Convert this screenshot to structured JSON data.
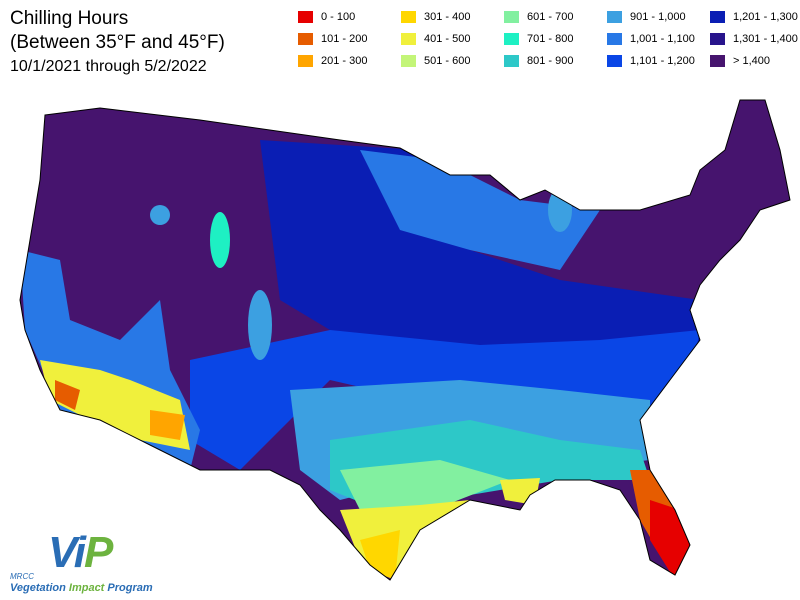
{
  "title": "Chilling Hours",
  "subtitle": "(Between 35°F and 45°F)",
  "date_range": "10/1/2021 through 5/2/2022",
  "legend": [
    {
      "label": "0 - 100",
      "color": "#e60000"
    },
    {
      "label": "101 - 200",
      "color": "#e65c00"
    },
    {
      "label": "201 - 300",
      "color": "#ffa500"
    },
    {
      "label": "301 - 400",
      "color": "#ffd700"
    },
    {
      "label": "401 - 500",
      "color": "#f0f03c"
    },
    {
      "label": "501 - 600",
      "color": "#c3f578"
    },
    {
      "label": "601 - 700",
      "color": "#82f0a0"
    },
    {
      "label": "701 - 800",
      "color": "#1ef0c3"
    },
    {
      "label": "801 - 900",
      "color": "#2dc8c8"
    },
    {
      "label": "901 - 1,000",
      "color": "#3ca0e1"
    },
    {
      "label": "1,001 - 1,100",
      "color": "#2878e6"
    },
    {
      "label": "1,101 - 1,200",
      "color": "#0a46e6"
    },
    {
      "label": "1,201 - 1,300",
      "color": "#0a1eb4"
    },
    {
      "label": "1,301 - 1,400",
      "color": "#28148c"
    },
    {
      "label": "> 1,400",
      "color": "#46146e"
    }
  ],
  "logo": {
    "letters": [
      "V",
      "i",
      "P"
    ],
    "org": "MRCC",
    "name": [
      "Vegetation",
      "Impact",
      "Program"
    ]
  }
}
